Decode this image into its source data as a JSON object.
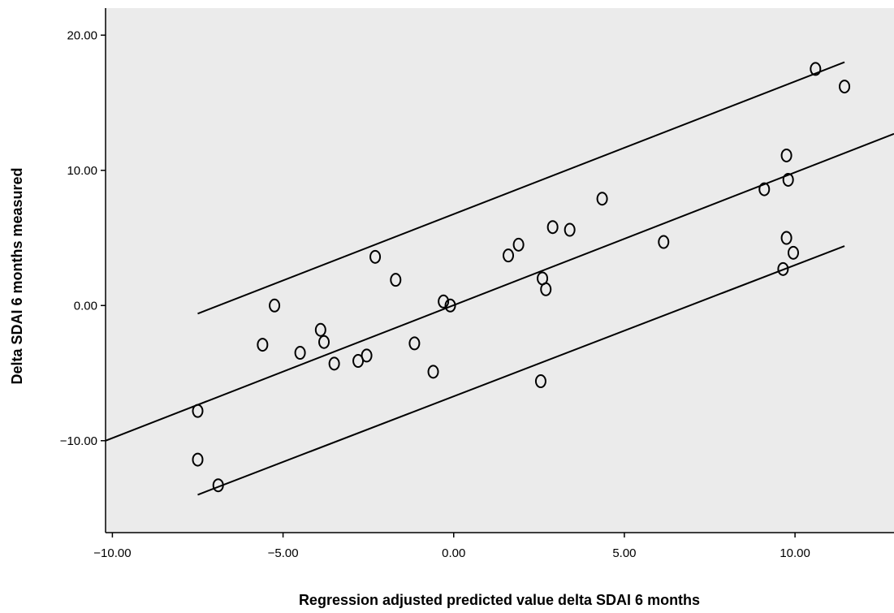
{
  "chart_data": {
    "type": "scatter",
    "xlabel": "Regression adjusted predicted value delta SDAI 6 months",
    "ylabel": "Delta SDAI 6 months measured",
    "xlim": [
      -10.2,
      12.9
    ],
    "ylim": [
      -16.8,
      22.0
    ],
    "x_ticks": [
      -10,
      -5,
      0,
      5,
      10
    ],
    "y_ticks": [
      -10,
      0,
      10,
      20
    ],
    "x_tick_labels": [
      "−10.00",
      "−5.00",
      "0.00",
      "5.00",
      "10.00"
    ],
    "y_tick_labels": [
      "−10.00",
      "0.00",
      "10.00",
      "20.00"
    ],
    "grid": false,
    "plot_background": "#ebebeb",
    "point_color": "#000000",
    "points": [
      {
        "x": -7.5,
        "y": -11.4
      },
      {
        "x": -7.5,
        "y": -7.8
      },
      {
        "x": -6.9,
        "y": -13.3
      },
      {
        "x": -5.6,
        "y": -2.9
      },
      {
        "x": -5.25,
        "y": 0.0
      },
      {
        "x": -4.5,
        "y": -3.5
      },
      {
        "x": -3.9,
        "y": -1.8
      },
      {
        "x": -3.8,
        "y": -2.7
      },
      {
        "x": -3.5,
        "y": -4.3
      },
      {
        "x": -2.8,
        "y": -4.1
      },
      {
        "x": -2.55,
        "y": -3.7
      },
      {
        "x": -2.3,
        "y": 3.6
      },
      {
        "x": -1.7,
        "y": 1.9
      },
      {
        "x": -1.15,
        "y": -2.8
      },
      {
        "x": -0.6,
        "y": -4.9
      },
      {
        "x": -0.3,
        "y": 0.3
      },
      {
        "x": -0.1,
        "y": 0.0
      },
      {
        "x": 1.6,
        "y": 3.7
      },
      {
        "x": 1.9,
        "y": 4.5
      },
      {
        "x": 2.55,
        "y": -5.6
      },
      {
        "x": 2.6,
        "y": 2.0
      },
      {
        "x": 2.7,
        "y": 1.2
      },
      {
        "x": 2.9,
        "y": 5.8
      },
      {
        "x": 3.4,
        "y": 5.6
      },
      {
        "x": 4.35,
        "y": 7.9
      },
      {
        "x": 6.15,
        "y": 4.7
      },
      {
        "x": 9.1,
        "y": 8.6
      },
      {
        "x": 9.65,
        "y": 2.7
      },
      {
        "x": 9.75,
        "y": 11.1
      },
      {
        "x": 9.75,
        "y": 5.0
      },
      {
        "x": 9.8,
        "y": 9.3
      },
      {
        "x": 9.95,
        "y": 3.9
      },
      {
        "x": 10.6,
        "y": 17.5
      },
      {
        "x": 11.45,
        "y": 16.2
      }
    ],
    "lines": [
      {
        "x1": -10.2,
        "y1": -10.0,
        "x2": 12.9,
        "y2": 12.7
      },
      {
        "x1": -7.5,
        "y1": -0.6,
        "x2": 11.45,
        "y2": 18.0
      },
      {
        "x1": -7.5,
        "y1": -14.0,
        "x2": 11.45,
        "y2": 4.4
      }
    ]
  }
}
